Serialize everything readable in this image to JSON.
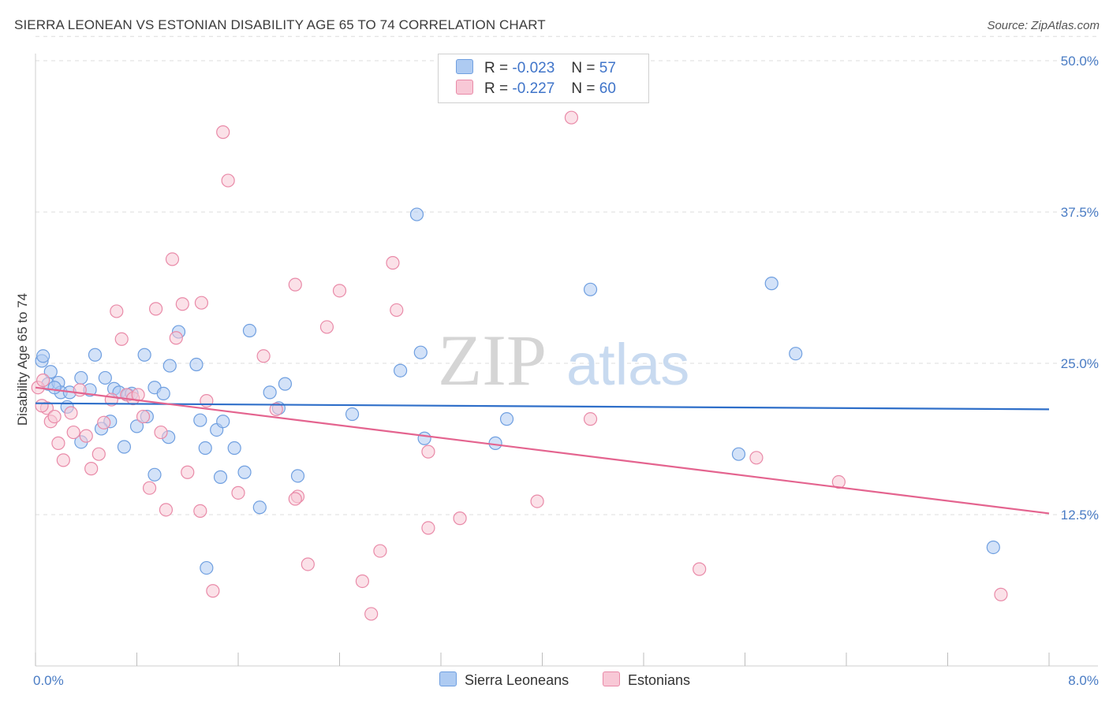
{
  "title": "SIERRA LEONEAN VS ESTONIAN DISABILITY AGE 65 TO 74 CORRELATION CHART",
  "source": "Source: ZipAtlas.com",
  "watermark": {
    "zip": "ZIP",
    "atlas": "atlas"
  },
  "legend_top": [
    {
      "r_label": "R =",
      "r_value": "-0.023",
      "n_label": "N =",
      "n_value": "57",
      "color": "#aecbf2",
      "border": "#6f9fe0"
    },
    {
      "r_label": "R =",
      "r_value": "-0.227",
      "n_label": "N =",
      "n_value": "60",
      "color": "#f8c8d6",
      "border": "#e98aa8"
    }
  ],
  "legend_bottom": [
    {
      "label": "Sierra Leoneans",
      "color": "#aecbf2",
      "border": "#6f9fe0"
    },
    {
      "label": "Estonians",
      "color": "#f8c8d6",
      "border": "#e98aa8"
    }
  ],
  "chart_data": {
    "type": "scatter",
    "xlabel": "",
    "ylabel": "Disability Age 65 to 74",
    "xlim": [
      0.0,
      8.0
    ],
    "ylim": [
      0.0,
      50.0
    ],
    "x_tick_labels": [
      "0.0%",
      "8.0%"
    ],
    "y_ticks": [
      12.5,
      25.0,
      37.5,
      50.0
    ],
    "y_tick_labels": [
      "12.5%",
      "25.0%",
      "37.5%",
      "50.0%"
    ],
    "grid": true,
    "series": [
      {
        "name": "Sierra Leoneans",
        "color": "#6f9fe0",
        "fill": "#aecbf2",
        "trend": {
          "x": [
            0.0,
            8.0
          ],
          "y": [
            21.7,
            21.2
          ],
          "color": "#2f6fc9"
        },
        "points": [
          [
            0.05,
            25.2
          ],
          [
            0.06,
            25.6
          ],
          [
            0.12,
            24.3
          ],
          [
            0.1,
            23.3
          ],
          [
            0.18,
            23.4
          ],
          [
            0.2,
            22.6
          ],
          [
            0.27,
            22.6
          ],
          [
            0.25,
            21.4
          ],
          [
            0.36,
            23.8
          ],
          [
            0.43,
            22.8
          ],
          [
            0.47,
            25.7
          ],
          [
            0.55,
            23.8
          ],
          [
            0.62,
            22.9
          ],
          [
            0.66,
            22.6
          ],
          [
            0.73,
            22.4
          ],
          [
            0.76,
            22.5
          ],
          [
            0.86,
            25.7
          ],
          [
            0.94,
            23.0
          ],
          [
            1.01,
            22.5
          ],
          [
            1.06,
            24.8
          ],
          [
            0.59,
            20.2
          ],
          [
            0.52,
            19.6
          ],
          [
            0.8,
            19.8
          ],
          [
            0.88,
            20.6
          ],
          [
            1.05,
            18.9
          ],
          [
            0.36,
            18.5
          ],
          [
            0.7,
            18.1
          ],
          [
            0.94,
            15.8
          ],
          [
            1.13,
            27.6
          ],
          [
            1.27,
            24.9
          ],
          [
            1.3,
            20.3
          ],
          [
            1.34,
            18.0
          ],
          [
            1.43,
            19.5
          ],
          [
            1.46,
            15.6
          ],
          [
            1.35,
            8.1
          ],
          [
            1.48,
            20.2
          ],
          [
            1.57,
            18.0
          ],
          [
            1.65,
            16.0
          ],
          [
            1.69,
            27.7
          ],
          [
            1.77,
            13.1
          ],
          [
            1.85,
            22.6
          ],
          [
            1.92,
            21.3
          ],
          [
            1.97,
            23.3
          ],
          [
            2.07,
            15.7
          ],
          [
            2.5,
            20.8
          ],
          [
            2.88,
            24.4
          ],
          [
            3.01,
            37.3
          ],
          [
            3.04,
            25.9
          ],
          [
            3.07,
            18.8
          ],
          [
            3.63,
            18.4
          ],
          [
            3.72,
            20.4
          ],
          [
            4.38,
            31.1
          ],
          [
            5.55,
            17.5
          ],
          [
            5.81,
            31.6
          ],
          [
            6.0,
            25.8
          ],
          [
            7.56,
            9.8
          ],
          [
            0.15,
            23.0
          ]
        ]
      },
      {
        "name": "Estonians",
        "color": "#e98aa8",
        "fill": "#f8c8d6",
        "trend": {
          "x": [
            0.0,
            8.0
          ],
          "y": [
            23.0,
            12.6
          ],
          "color": "#e4648f"
        },
        "points": [
          [
            0.02,
            23.0
          ],
          [
            0.06,
            23.6
          ],
          [
            0.09,
            21.3
          ],
          [
            0.12,
            20.2
          ],
          [
            0.15,
            20.6
          ],
          [
            0.18,
            18.4
          ],
          [
            0.22,
            17.0
          ],
          [
            0.28,
            20.9
          ],
          [
            0.3,
            19.3
          ],
          [
            0.35,
            22.8
          ],
          [
            0.4,
            19.0
          ],
          [
            0.44,
            16.3
          ],
          [
            0.5,
            17.5
          ],
          [
            0.54,
            20.1
          ],
          [
            0.6,
            22.0
          ],
          [
            0.64,
            29.3
          ],
          [
            0.68,
            27.0
          ],
          [
            0.72,
            22.4
          ],
          [
            0.77,
            22.1
          ],
          [
            0.81,
            22.4
          ],
          [
            0.85,
            20.6
          ],
          [
            0.9,
            14.7
          ],
          [
            0.95,
            29.5
          ],
          [
            0.99,
            19.3
          ],
          [
            1.03,
            12.9
          ],
          [
            1.08,
            33.6
          ],
          [
            1.11,
            27.1
          ],
          [
            1.16,
            29.9
          ],
          [
            1.2,
            16.0
          ],
          [
            1.31,
            30.0
          ],
          [
            1.35,
            21.9
          ],
          [
            1.4,
            6.2
          ],
          [
            1.52,
            40.1
          ],
          [
            1.48,
            44.1
          ],
          [
            1.6,
            14.3
          ],
          [
            1.8,
            25.6
          ],
          [
            1.9,
            21.2
          ],
          [
            2.05,
            31.5
          ],
          [
            2.07,
            14.0
          ],
          [
            2.05,
            13.8
          ],
          [
            2.15,
            8.4
          ],
          [
            2.3,
            28.0
          ],
          [
            2.4,
            31.0
          ],
          [
            2.58,
            7.0
          ],
          [
            2.65,
            4.3
          ],
          [
            2.72,
            9.5
          ],
          [
            2.85,
            29.4
          ],
          [
            2.82,
            33.3
          ],
          [
            3.1,
            17.7
          ],
          [
            3.1,
            11.4
          ],
          [
            3.35,
            12.2
          ],
          [
            3.96,
            13.6
          ],
          [
            4.23,
            45.3
          ],
          [
            4.38,
            20.4
          ],
          [
            5.24,
            8.0
          ],
          [
            5.69,
            17.2
          ],
          [
            6.34,
            15.2
          ],
          [
            7.62,
            5.9
          ],
          [
            0.05,
            21.5
          ],
          [
            1.3,
            12.8
          ]
        ]
      }
    ]
  }
}
